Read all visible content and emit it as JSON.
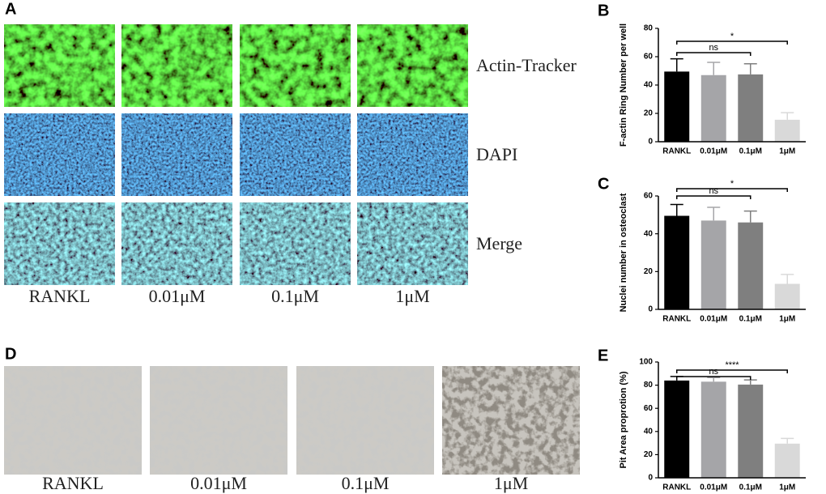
{
  "panel_labels": [
    "A",
    "B",
    "C",
    "D",
    "E"
  ],
  "panel_a": {
    "rows": [
      "Actin-Tracker",
      "DAPI",
      "Merge"
    ],
    "columns": [
      "RANKL",
      "0.01μM",
      "0.1μM",
      "1μM"
    ]
  },
  "panel_d": {
    "columns": [
      "RANKL",
      "0.01μM",
      "0.1μM",
      "1μM"
    ]
  },
  "chart_data": [
    {
      "type": "bar",
      "y_label": "F-actin Ring Number per well",
      "categories": [
        "RANKL",
        "0.01μM",
        "0.1μM",
        "1μM"
      ],
      "values": [
        49.5,
        47,
        47.5,
        15.5
      ],
      "errors": [
        9,
        9,
        7.5,
        5
      ],
      "colors": [
        "#000000",
        "#a5a5a8",
        "#7f7f7f",
        "#d9d9d9"
      ],
      "ylim": [
        0,
        80
      ],
      "yticks": [
        0,
        20,
        40,
        60,
        80
      ],
      "significance": [
        "ns",
        "*"
      ]
    },
    {
      "type": "bar",
      "y_label": "Nuclei number in osteoclast",
      "categories": [
        "RANKL",
        "0.01μM",
        "0.1μM",
        "1μM"
      ],
      "values": [
        49.5,
        47,
        46,
        13.5
      ],
      "errors": [
        6,
        7,
        6,
        5
      ],
      "colors": [
        "#000000",
        "#a5a5a8",
        "#7f7f7f",
        "#d9d9d9"
      ],
      "ylim": [
        0,
        60
      ],
      "yticks": [
        0,
        20,
        40,
        60
      ],
      "significance": [
        "ns",
        "*"
      ]
    },
    {
      "type": "bar",
      "y_label": "Pit Area proprotion (%)",
      "categories": [
        "RANKL",
        "0.01μM",
        "0.1μM",
        "1μM"
      ],
      "values": [
        84,
        83,
        80.5,
        29.5
      ],
      "errors": [
        3.5,
        3.5,
        4,
        4.5
      ],
      "colors": [
        "#000000",
        "#a5a5a8",
        "#7f7f7f",
        "#d9d9d9"
      ],
      "ylim": [
        0,
        100
      ],
      "yticks": [
        0,
        20,
        40,
        60,
        80,
        100
      ],
      "significance": [
        "ns",
        "****"
      ]
    }
  ]
}
